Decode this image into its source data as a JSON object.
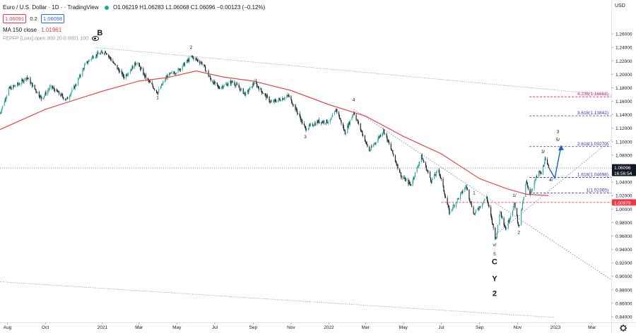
{
  "header": {
    "symbol": "Euro / U.S. Dollar · 1D ·",
    "source": "· TradingView",
    "ohlc": "O1.06219 H1.06283 L1.06068 C1.06096 −0.00123 (−0.12%)",
    "bid": "1.06091",
    "spread": "0.2",
    "ask": "1.06098",
    "ma_label": "MA 150 close",
    "ma_value": "1.01961",
    "fepp_label": "FEPFP [Loxx] open 300 20 0.0001 100"
  },
  "currency": "USD",
  "colors": {
    "up": "#26a69a",
    "down": "#131722",
    "ma": "#e53935",
    "fib_blue": "#2d38b8",
    "fib_magenta": "#d11a8f",
    "arrow": "#1565c0",
    "price_tag": "#131722",
    "ma_tag": "#f23645",
    "bid": "#f23645",
    "ask": "#2962ff"
  },
  "icons": [
    "eye-icon",
    "settings-gear-icon"
  ],
  "chart_data": {
    "type": "candlestick",
    "instrument": "EURUSD",
    "timeframe": "1D",
    "x_range": [
      "2020-07-20",
      "2023-04-01"
    ],
    "ylim": [
      0.84,
      1.28
    ],
    "y_ticks": [
      "1.26000",
      "1.24000",
      "1.22000",
      "1.20000",
      "1.18000",
      "1.16000",
      "1.14000",
      "1.12000",
      "1.10000",
      "1.08000",
      "1.06000",
      "1.04000",
      "1.02000",
      "1.00000",
      "0.98000",
      "0.96000",
      "0.94000",
      "0.92000",
      "0.90000",
      "0.88000",
      "0.86000",
      "0.84000"
    ],
    "x_ticks": [
      {
        "label": "Aug",
        "date": "2020-08-01"
      },
      {
        "label": "Oct",
        "date": "2020-10-01"
      },
      {
        "label": "2021",
        "date": "2021-01-01"
      },
      {
        "label": "Mar",
        "date": "2021-03-01"
      },
      {
        "label": "May",
        "date": "2021-05-01"
      },
      {
        "label": "Jul",
        "date": "2021-07-01"
      },
      {
        "label": "Sep",
        "date": "2021-09-01"
      },
      {
        "label": "Nov",
        "date": "2021-11-01"
      },
      {
        "label": "2022",
        "date": "2022-01-01"
      },
      {
        "label": "Mar",
        "date": "2022-03-01"
      },
      {
        "label": "May",
        "date": "2022-05-01"
      },
      {
        "label": "Jul",
        "date": "2022-07-01"
      },
      {
        "label": "Sep",
        "date": "2022-09-01"
      },
      {
        "label": "Nov",
        "date": "2022-11-01"
      },
      {
        "label": "2023",
        "date": "2023-01-01"
      },
      {
        "label": "Mar",
        "date": "2023-03-01"
      }
    ],
    "price_path": [
      [
        "2020-07-20",
        1.142
      ],
      [
        "2020-08-03",
        1.178
      ],
      [
        "2020-08-20",
        1.186
      ],
      [
        "2020-09-01",
        1.196
      ],
      [
        "2020-09-25",
        1.164
      ],
      [
        "2020-10-10",
        1.182
      ],
      [
        "2020-11-04",
        1.162
      ],
      [
        "2020-11-20",
        1.186
      ],
      [
        "2020-12-04",
        1.214
      ],
      [
        "2020-12-17",
        1.227
      ],
      [
        "2021-01-06",
        1.234
      ],
      [
        "2021-01-20",
        1.215
      ],
      [
        "2021-02-05",
        1.196
      ],
      [
        "2021-02-25",
        1.218
      ],
      [
        "2021-03-12",
        1.195
      ],
      [
        "2021-03-31",
        1.173
      ],
      [
        "2021-04-15",
        1.197
      ],
      [
        "2021-05-03",
        1.206
      ],
      [
        "2021-05-25",
        1.226
      ],
      [
        "2021-06-10",
        1.217
      ],
      [
        "2021-06-25",
        1.192
      ],
      [
        "2021-07-07",
        1.18
      ],
      [
        "2021-07-30",
        1.189
      ],
      [
        "2021-08-20",
        1.17
      ],
      [
        "2021-09-03",
        1.188
      ],
      [
        "2021-09-30",
        1.158
      ],
      [
        "2021-10-28",
        1.168
      ],
      [
        "2021-11-10",
        1.146
      ],
      [
        "2021-11-24",
        1.119
      ],
      [
        "2021-12-15",
        1.13
      ],
      [
        "2022-01-03",
        1.13
      ],
      [
        "2022-01-13",
        1.148
      ],
      [
        "2022-01-27",
        1.113
      ],
      [
        "2022-02-10",
        1.144
      ],
      [
        "2022-03-07",
        1.086
      ],
      [
        "2022-03-30",
        1.117
      ],
      [
        "2022-04-14",
        1.082
      ],
      [
        "2022-04-28",
        1.048
      ],
      [
        "2022-05-13",
        1.036
      ],
      [
        "2022-05-30",
        1.078
      ],
      [
        "2022-06-15",
        1.042
      ],
      [
        "2022-06-27",
        1.058
      ],
      [
        "2022-07-14",
        0.995
      ],
      [
        "2022-08-10",
        1.034
      ],
      [
        "2022-08-23",
        0.992
      ],
      [
        "2022-09-12",
        1.018
      ],
      [
        "2022-09-27",
        0.955
      ],
      [
        "2022-10-04",
        0.998
      ],
      [
        "2022-10-13",
        0.97
      ],
      [
        "2022-10-27",
        1.008
      ],
      [
        "2022-11-03",
        0.973
      ],
      [
        "2022-11-15",
        1.04
      ],
      [
        "2022-11-21",
        1.023
      ],
      [
        "2022-12-05",
        1.055
      ],
      [
        "2022-12-09",
        1.052
      ],
      [
        "2022-12-15",
        1.073
      ],
      [
        "2022-12-21",
        1.061
      ]
    ],
    "ma150_path": [
      [
        "2020-07-20",
        1.118
      ],
      [
        "2020-10-01",
        1.148
      ],
      [
        "2021-01-01",
        1.175
      ],
      [
        "2021-03-01",
        1.19
      ],
      [
        "2021-04-15",
        1.195
      ],
      [
        "2021-06-01",
        1.205
      ],
      [
        "2021-07-15",
        1.196
      ],
      [
        "2021-09-01",
        1.19
      ],
      [
        "2021-11-01",
        1.176
      ],
      [
        "2022-01-01",
        1.155
      ],
      [
        "2022-03-01",
        1.138
      ],
      [
        "2022-05-01",
        1.108
      ],
      [
        "2022-07-01",
        1.082
      ],
      [
        "2022-09-01",
        1.045
      ],
      [
        "2022-10-15",
        1.03
      ],
      [
        "2022-11-15",
        1.022
      ],
      [
        "2022-12-21",
        1.02
      ]
    ],
    "ma_last": 1.01961,
    "last_price": 1.06096,
    "countdown": "16:56:54",
    "fib_levels": [
      {
        "label": "4.236(1.16668)",
        "value": 1.16668,
        "color": "magenta"
      },
      {
        "label": "3.618(1.13842)",
        "value": 1.13842,
        "color": "blue"
      },
      {
        "label": "2.618(1.09270)",
        "value": 1.0927,
        "color": "blue"
      },
      {
        "label": "1.618(1.04698)",
        "value": 1.04698,
        "color": "blue"
      },
      {
        "label": "1(1.02365)",
        "value": 1.02365,
        "color": "blue"
      },
      {
        "label": "",
        "value": 1.00979,
        "color": "red"
      }
    ],
    "projection": [
      [
        "2022-12-21",
        1.062
      ],
      [
        "2022-12-31",
        1.046
      ],
      [
        "2023-01-10",
        1.093
      ]
    ],
    "wave_labels": [
      {
        "text": "B",
        "date": "2020-12-28",
        "y": 1.258,
        "big": true
      },
      {
        "text": "2",
        "date": "2021-05-24",
        "y": 1.238
      },
      {
        "text": "1",
        "date": "2021-03-31",
        "y": 1.163
      },
      {
        "text": "3",
        "date": "2021-11-24",
        "y": 1.105
      },
      {
        "text": "4",
        "date": "2022-02-10",
        "y": 1.16
      },
      {
        "text": "1",
        "date": "2022-08-23",
        "y": 1.022
      },
      {
        "text": "1/",
        "date": "2022-10-27",
        "y": 1.018
      },
      {
        "text": "2",
        "date": "2022-11-03",
        "y": 0.963
      },
      {
        "text": "v/",
        "date": "2022-09-25",
        "y": 0.945
      },
      {
        "text": "5",
        "date": "2022-09-25",
        "y": 0.931
      },
      {
        "text": "C",
        "date": "2022-09-25",
        "y": 0.918,
        "big": true
      },
      {
        "text": "Y",
        "date": "2022-09-25",
        "y": 0.893,
        "big": true
      },
      {
        "text": "2",
        "date": "2022-09-25",
        "y": 0.871,
        "big": true
      },
      {
        "text": "3/",
        "date": "2022-12-12",
        "y": 1.083
      },
      {
        "text": "4/",
        "date": "2022-12-25",
        "y": 1.041
      },
      {
        "text": "3",
        "date": "2023-01-05",
        "y": 1.113
      },
      {
        "text": "5/",
        "date": "2023-01-05",
        "y": 1.101
      }
    ],
    "trendlines": [
      {
        "from": [
          "2020-12-20",
          1.24
        ],
        "to": [
          "2023-04-01",
          1.169
        ],
        "style": "dotted"
      },
      {
        "from": [
          "2020-07-20",
          0.892
        ],
        "to": [
          "2022-12-31",
          0.839
        ],
        "style": "dotted"
      },
      {
        "from": [
          "2022-02-10",
          1.148
        ],
        "to": [
          "2023-04-01",
          0.895
        ],
        "style": "dotted-blue"
      },
      {
        "from": [
          "2022-09-27",
          0.962
        ],
        "to": [
          "2023-04-01",
          1.103
        ],
        "style": "dotted-blue"
      }
    ]
  }
}
